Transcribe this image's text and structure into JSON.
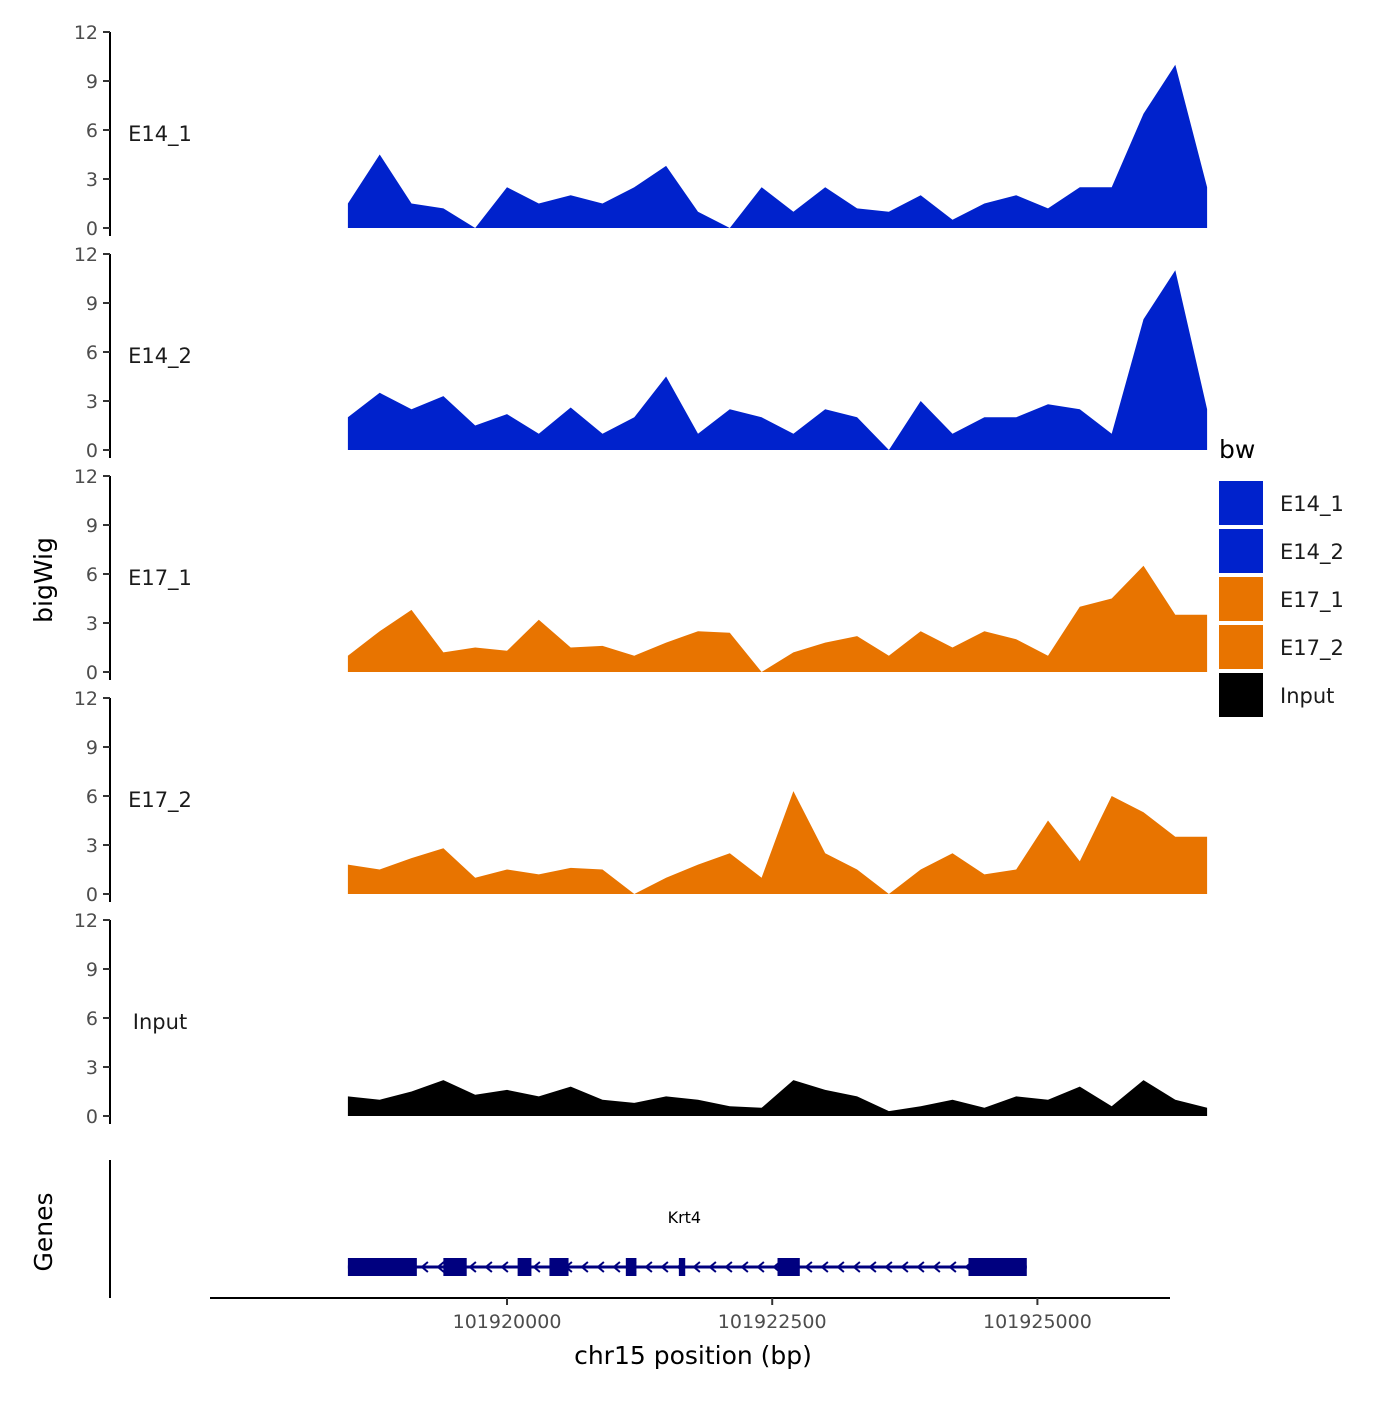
{
  "chart_data": {
    "type": "area",
    "subtype": "genome-browser-coverage-tracks",
    "chromosome": "chr15",
    "x_range": [
      101917200,
      101926250
    ],
    "xlabel": "chr15 position (bp)",
    "ylabel": "bigWig",
    "x_ticks": [
      {
        "value": 101920000,
        "label": "101920000"
      },
      {
        "value": 101922500,
        "label": "101922500"
      },
      {
        "value": 101925000,
        "label": "101925000"
      }
    ],
    "y_ticks": [
      {
        "value": 0,
        "label": "0"
      },
      {
        "value": 3,
        "label": "3"
      },
      {
        "value": 6,
        "label": "6"
      },
      {
        "value": 9,
        "label": "9"
      },
      {
        "value": 12,
        "label": "12"
      }
    ],
    "ylim": [
      0,
      12
    ],
    "track_x": [
      101918500,
      101918800,
      101919100,
      101919400,
      101919700,
      101920000,
      101920300,
      101920600,
      101920900,
      101921200,
      101921500,
      101921800,
      101922100,
      101922400,
      101922700,
      101923000,
      101923300,
      101923600,
      101923900,
      101924200,
      101924500,
      101924800,
      101925100,
      101925400,
      101925700,
      101926000,
      101926300,
      101926600
    ],
    "series": [
      {
        "name": "E14_1",
        "color": "#0022cc",
        "values": [
          1.5,
          4.5,
          1.5,
          1.2,
          0.0,
          2.5,
          1.5,
          2.0,
          1.5,
          2.5,
          3.8,
          1.0,
          0.0,
          2.5,
          1.0,
          2.5,
          1.2,
          1.0,
          2.0,
          0.5,
          1.5,
          2.0,
          1.2,
          2.5,
          2.5,
          7.0,
          10.0,
          2.5
        ]
      },
      {
        "name": "E14_2",
        "color": "#0022cc",
        "values": [
          2.0,
          3.5,
          2.5,
          3.3,
          1.5,
          2.2,
          1.0,
          2.6,
          1.0,
          2.0,
          4.5,
          1.0,
          2.5,
          2.0,
          1.0,
          2.5,
          2.0,
          0.0,
          3.0,
          1.0,
          2.0,
          2.0,
          2.8,
          2.5,
          1.0,
          8.0,
          11.0,
          2.5
        ]
      },
      {
        "name": "E17_1",
        "color": "#e87400",
        "values": [
          1.0,
          2.5,
          3.8,
          1.2,
          1.5,
          1.3,
          3.2,
          1.5,
          1.6,
          1.0,
          1.8,
          2.5,
          2.4,
          0.0,
          1.2,
          1.8,
          2.2,
          1.0,
          2.5,
          1.5,
          2.5,
          2.0,
          1.0,
          4.0,
          4.5,
          6.5,
          3.5,
          3.5
        ]
      },
      {
        "name": "E17_2",
        "color": "#e87400",
        "values": [
          1.8,
          1.5,
          2.2,
          2.8,
          1.0,
          1.5,
          1.2,
          1.6,
          1.5,
          0.0,
          1.0,
          1.8,
          2.5,
          1.0,
          6.3,
          2.5,
          1.5,
          0.0,
          1.5,
          2.5,
          1.2,
          1.5,
          4.5,
          2.0,
          6.0,
          5.0,
          3.5,
          3.5
        ]
      },
      {
        "name": "Input",
        "color": "#000000",
        "values": [
          1.2,
          1.0,
          1.5,
          2.2,
          1.3,
          1.6,
          1.2,
          1.8,
          1.0,
          0.8,
          1.2,
          1.0,
          0.6,
          0.5,
          2.2,
          1.6,
          1.2,
          0.3,
          0.6,
          1.0,
          0.5,
          1.2,
          1.0,
          1.8,
          0.6,
          2.2,
          1.0,
          0.5
        ]
      }
    ],
    "legend": {
      "title": "bw",
      "entries": [
        {
          "label": "E14_1",
          "color": "#0022cc"
        },
        {
          "label": "E14_2",
          "color": "#0022cc"
        },
        {
          "label": "E17_1",
          "color": "#e87400"
        },
        {
          "label": "E17_2",
          "color": "#e87400"
        },
        {
          "label": "Input",
          "color": "#000000"
        }
      ]
    },
    "gene_track": {
      "title": "Genes",
      "color": "#00007f",
      "genes": [
        {
          "name": "Krt4",
          "strand": "-",
          "start": 101918500,
          "end": 101924900,
          "exons": [
            [
              101918500,
              101919150
            ],
            [
              101919400,
              101919620
            ],
            [
              101920100,
              101920230
            ],
            [
              101920400,
              101920580
            ],
            [
              101921120,
              101921220
            ],
            [
              101921620,
              101921680
            ],
            [
              101922550,
              101922760
            ],
            [
              101924350,
              101924900
            ]
          ]
        }
      ]
    }
  }
}
